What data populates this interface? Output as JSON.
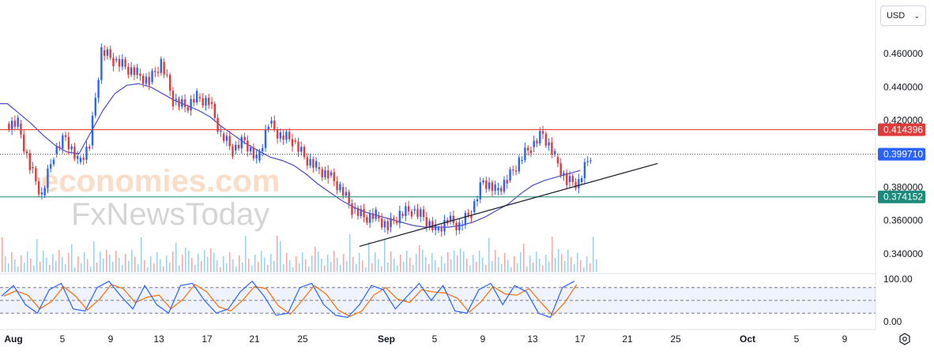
{
  "currency_selector": {
    "value": "USD"
  },
  "chart_data": {
    "type": "candlestick",
    "price_axis": {
      "ticks": [
        "0.460000",
        "0.440000",
        "0.420000",
        "0.380000",
        "0.360000",
        "0.340000"
      ],
      "range": [
        0.335,
        0.475
      ]
    },
    "horizontal_levels": [
      {
        "value": 0.414396,
        "label": "0.414396",
        "color": "#e03b3b",
        "style": "solid"
      },
      {
        "value": 0.39971,
        "label": "0.399710",
        "color": "#2962ff",
        "style": "dotted",
        "note": "last price"
      },
      {
        "value": 0.374152,
        "label": "0.374152",
        "color": "#1b8a7a",
        "style": "solid"
      }
    ],
    "date_axis": {
      "ticks": [
        "Aug",
        "5",
        "9",
        "13",
        "17",
        "21",
        "25",
        "Sep",
        "5",
        "9",
        "13",
        "17",
        "21",
        "25",
        "Oct",
        "5",
        "9"
      ]
    },
    "price_path": [
      {
        "date": "Aug 1",
        "close": 0.418
      },
      {
        "date": "Aug 2",
        "close": 0.392
      },
      {
        "date": "Aug 3",
        "close": 0.375
      },
      {
        "date": "Aug 4",
        "close": 0.4
      },
      {
        "date": "Aug 5",
        "close": 0.41
      },
      {
        "date": "Aug 6",
        "close": 0.395
      },
      {
        "date": "Aug 7",
        "close": 0.405
      },
      {
        "date": "Aug 8",
        "close": 0.462
      },
      {
        "date": "Aug 9",
        "close": 0.456
      },
      {
        "date": "Aug 10",
        "close": 0.452
      },
      {
        "date": "Aug 11",
        "close": 0.448
      },
      {
        "date": "Aug 12",
        "close": 0.443
      },
      {
        "date": "Aug 13",
        "close": 0.455
      },
      {
        "date": "Aug 14",
        "close": 0.432
      },
      {
        "date": "Aug 15",
        "close": 0.428
      },
      {
        "date": "Aug 16",
        "close": 0.434
      },
      {
        "date": "Aug 17",
        "close": 0.431
      },
      {
        "date": "Aug 18",
        "close": 0.412
      },
      {
        "date": "Aug 19",
        "close": 0.402
      },
      {
        "date": "Aug 20",
        "close": 0.408
      },
      {
        "date": "Aug 21",
        "close": 0.396
      },
      {
        "date": "Aug 22",
        "close": 0.418
      },
      {
        "date": "Aug 23",
        "close": 0.411
      },
      {
        "date": "Aug 24",
        "close": 0.408
      },
      {
        "date": "Aug 25",
        "close": 0.398
      },
      {
        "date": "Aug 26",
        "close": 0.392
      },
      {
        "date": "Aug 27",
        "close": 0.387
      },
      {
        "date": "Aug 28",
        "close": 0.38
      },
      {
        "date": "Aug 29",
        "close": 0.367
      },
      {
        "date": "Aug 30",
        "close": 0.362
      },
      {
        "date": "Aug 31",
        "close": 0.363
      },
      {
        "date": "Sep 1",
        "close": 0.356
      },
      {
        "date": "Sep 2",
        "close": 0.364
      },
      {
        "date": "Sep 3",
        "close": 0.366
      },
      {
        "date": "Sep 4",
        "close": 0.362
      },
      {
        "date": "Sep 5",
        "close": 0.354
      },
      {
        "date": "Sep 6",
        "close": 0.36
      },
      {
        "date": "Sep 7",
        "close": 0.357
      },
      {
        "date": "Sep 8",
        "close": 0.365
      },
      {
        "date": "Sep 9",
        "close": 0.384
      },
      {
        "date": "Sep 10",
        "close": 0.378
      },
      {
        "date": "Sep 11",
        "close": 0.384
      },
      {
        "date": "Sep 12",
        "close": 0.396
      },
      {
        "date": "Sep 13",
        "close": 0.404
      },
      {
        "date": "Sep 14",
        "close": 0.412
      },
      {
        "date": "Sep 15",
        "close": 0.398
      },
      {
        "date": "Sep 16",
        "close": 0.383
      },
      {
        "date": "Sep 17",
        "close": 0.383
      },
      {
        "date": "Sep 18",
        "close": 0.39971
      }
    ],
    "moving_average": {
      "color": "#4b4bc8",
      "values": [
        0.43,
        0.424,
        0.418,
        0.411,
        0.405,
        0.401,
        0.4,
        0.413,
        0.426,
        0.436,
        0.441,
        0.442,
        0.44,
        0.436,
        0.432,
        0.429,
        0.426,
        0.422,
        0.416,
        0.411,
        0.406,
        0.402,
        0.398,
        0.396,
        0.393,
        0.388,
        0.382,
        0.377,
        0.372,
        0.368,
        0.365,
        0.363,
        0.361,
        0.359,
        0.357,
        0.356,
        0.356,
        0.356,
        0.357,
        0.359,
        0.362,
        0.366,
        0.37,
        0.376,
        0.381,
        0.384,
        0.386,
        0.388,
        0.39
      ]
    },
    "trendline": {
      "from": {
        "date": "Aug 30",
        "value": 0.3445
      },
      "to": {
        "date": "Sep 24",
        "value": 0.3942
      },
      "color": "#131722"
    },
    "volume": {
      "color_up": "#9fcfe6",
      "color_down": "#f0a8a8"
    },
    "oscillator": {
      "ticks": [
        "100.00",
        "0.00"
      ],
      "upper_band": 80,
      "lower_band": 20,
      "k_color": "#2962ff",
      "d_color": "#ff6d00",
      "k_values": [
        60,
        85,
        40,
        20,
        75,
        90,
        30,
        25,
        80,
        95,
        60,
        30,
        85,
        40,
        20,
        85,
        90,
        50,
        20,
        30,
        70,
        95,
        60,
        15,
        20,
        80,
        90,
        40,
        15,
        10,
        40,
        85,
        75,
        30,
        60,
        90,
        50,
        85,
        25,
        20,
        75,
        90,
        40,
        85,
        70,
        20,
        10,
        80,
        95
      ]
    },
    "watermarks": [
      {
        "text": "economies.com"
      },
      {
        "text": "FxNewsToday"
      }
    ]
  }
}
